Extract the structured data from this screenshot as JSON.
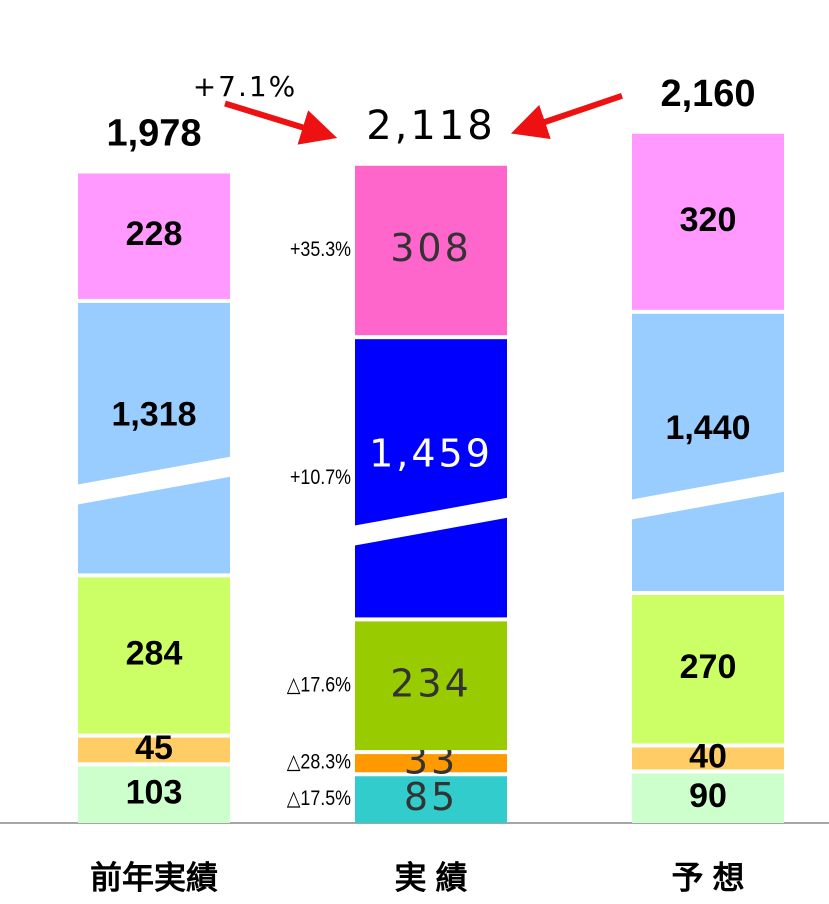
{
  "chart_data": {
    "type": "stacked_bar",
    "categories": [
      "前年実績",
      "実 績",
      "予 想"
    ],
    "series": [
      {
        "values": [
          103,
          85,
          90
        ],
        "colors": [
          "#ccffcc",
          "#33cccc",
          "#ccffcc"
        ]
      },
      {
        "values": [
          45,
          33,
          40
        ],
        "colors": [
          "#ffcc66",
          "#ff9900",
          "#ffcc66"
        ]
      },
      {
        "values": [
          284,
          234,
          270
        ],
        "colors": [
          "#ccff66",
          "#99cc00",
          "#ccff66"
        ]
      },
      {
        "values": [
          1318,
          1459,
          1440
        ],
        "value_labels": [
          "1,318",
          "1,459",
          "1,440"
        ],
        "colors": [
          "#99ccff",
          "#0000ff",
          "#99ccff"
        ],
        "broken": true
      },
      {
        "values": [
          228,
          308,
          320
        ],
        "colors": [
          "#ff99ff",
          "#ff66cc",
          "#ff99ff"
        ]
      }
    ],
    "totals": [
      1978,
      2118,
      2160
    ],
    "total_labels": [
      "1,978",
      "2,118",
      "2,160"
    ],
    "changes": [
      "△17.5%",
      "△28.3%",
      "△17.6%",
      "+10.7%",
      "+35.3%"
    ],
    "total_change": "+7.1%"
  }
}
